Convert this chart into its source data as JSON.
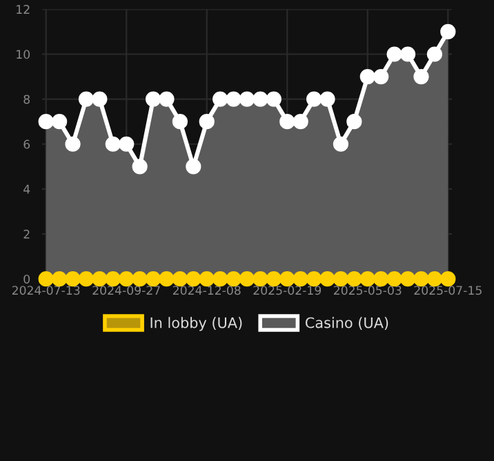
{
  "chart_data": {
    "type": "area",
    "categories": [
      "2024-07-13",
      null,
      null,
      null,
      null,
      null,
      "2024-09-27",
      null,
      null,
      null,
      null,
      null,
      "2024-12-08",
      null,
      null,
      null,
      null,
      null,
      "2025-02-19",
      null,
      null,
      null,
      null,
      null,
      "2025-05-03",
      null,
      null,
      null,
      null,
      null,
      "2025-07-15"
    ],
    "series": [
      {
        "name": "In lobby (UA)",
        "type": "scatter",
        "color": "#ffd000",
        "values": [
          0,
          0,
          0,
          0,
          0,
          0,
          0,
          0,
          0,
          0,
          0,
          0,
          0,
          0,
          0,
          0,
          0,
          0,
          0,
          0,
          0,
          0,
          0,
          0,
          0,
          0,
          0,
          0,
          0,
          0,
          0
        ]
      },
      {
        "name": "Casino (UA)",
        "color": "#ffffff",
        "values": [
          7,
          7,
          6,
          8,
          8,
          6,
          6,
          5,
          8,
          8,
          7,
          5,
          7,
          8,
          8,
          8,
          8,
          8,
          7,
          7,
          8,
          8,
          6,
          7,
          9,
          9,
          10,
          10,
          9,
          10,
          11
        ]
      }
    ],
    "ylim": [
      0,
      12
    ],
    "yticks": [
      0,
      2,
      4,
      6,
      8,
      10,
      12
    ],
    "grid": true,
    "legend": "bottom",
    "marker": "circle",
    "line_style": "solid"
  }
}
